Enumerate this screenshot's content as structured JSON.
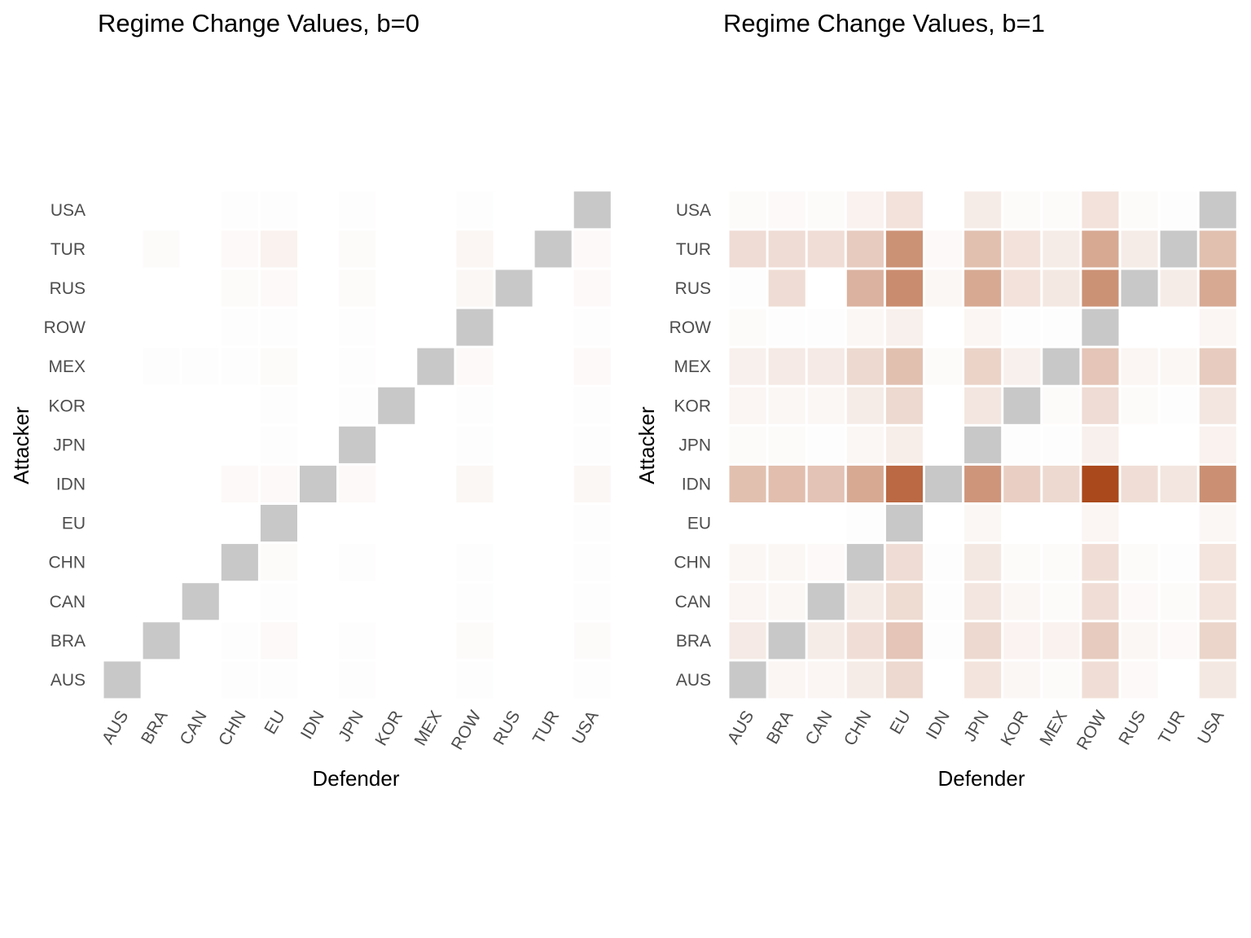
{
  "chart_data": [
    {
      "type": "heatmap",
      "title": "Regime Change Values, b=0",
      "xlabel": "Defender",
      "ylabel": "Attacker",
      "x_categories": [
        "AUS",
        "BRA",
        "CAN",
        "CHN",
        "EU",
        "IDN",
        "JPN",
        "KOR",
        "MEX",
        "ROW",
        "RUS",
        "TUR",
        "USA"
      ],
      "y_categories": [
        "AUS",
        "BRA",
        "CAN",
        "CHN",
        "EU",
        "IDN",
        "JPN",
        "KOR",
        "MEX",
        "ROW",
        "RUS",
        "TUR",
        "USA"
      ],
      "diagonal_color": "#c8c8c8",
      "low_color": "#ffffff",
      "high_color": "#a63f0f",
      "grid": false,
      "legend": "none",
      "rows": [
        [
          null,
          0.0,
          0.0,
          0.01,
          0.01,
          0.0,
          0.01,
          0.0,
          0.0,
          0.01,
          0.0,
          0.0,
          0.01
        ],
        [
          0.0,
          null,
          0.0,
          0.01,
          0.03,
          0.0,
          0.01,
          0.0,
          0.0,
          0.02,
          0.0,
          0.0,
          0.02
        ],
        [
          0.0,
          0.0,
          null,
          0.0,
          0.01,
          0.0,
          0.0,
          0.0,
          0.0,
          0.01,
          0.0,
          0.0,
          0.01
        ],
        [
          0.0,
          0.0,
          0.0,
          null,
          0.02,
          0.0,
          0.01,
          0.0,
          0.0,
          0.01,
          0.0,
          0.0,
          0.01
        ],
        [
          0.0,
          0.0,
          0.0,
          0.0,
          null,
          0.0,
          0.0,
          0.0,
          0.0,
          0.0,
          0.0,
          0.0,
          0.01
        ],
        [
          0.0,
          0.0,
          0.0,
          0.03,
          0.03,
          null,
          0.03,
          0.0,
          0.0,
          0.04,
          0.0,
          0.0,
          0.04
        ],
        [
          0.0,
          0.0,
          0.0,
          0.0,
          0.01,
          0.0,
          null,
          0.0,
          0.0,
          0.01,
          0.0,
          0.0,
          0.01
        ],
        [
          0.0,
          0.0,
          0.0,
          0.0,
          0.01,
          0.0,
          0.01,
          null,
          0.0,
          0.01,
          0.0,
          0.0,
          0.01
        ],
        [
          0.0,
          0.01,
          0.01,
          0.01,
          0.02,
          0.0,
          0.01,
          0.0,
          null,
          0.03,
          0.0,
          0.0,
          0.03
        ],
        [
          0.0,
          0.0,
          0.0,
          0.01,
          0.01,
          0.0,
          0.01,
          0.0,
          0.0,
          null,
          0.0,
          0.0,
          0.01
        ],
        [
          0.0,
          0.0,
          0.0,
          0.02,
          0.03,
          0.0,
          0.02,
          0.0,
          0.0,
          0.04,
          null,
          0.0,
          0.03
        ],
        [
          0.0,
          0.02,
          0.0,
          0.03,
          0.07,
          0.0,
          0.02,
          0.0,
          0.0,
          0.05,
          0.0,
          null,
          0.03
        ],
        [
          0.0,
          0.0,
          0.0,
          0.01,
          0.01,
          0.0,
          0.01,
          0.0,
          0.0,
          0.01,
          0.0,
          0.0,
          null
        ]
      ]
    },
    {
      "type": "heatmap",
      "title": "Regime Change Values, b=1",
      "xlabel": "Defender",
      "ylabel": "Attacker",
      "x_categories": [
        "AUS",
        "BRA",
        "CAN",
        "CHN",
        "EU",
        "IDN",
        "JPN",
        "KOR",
        "MEX",
        "ROW",
        "RUS",
        "TUR",
        "USA"
      ],
      "y_categories": [
        "AUS",
        "BRA",
        "CAN",
        "CHN",
        "EU",
        "IDN",
        "JPN",
        "KOR",
        "MEX",
        "ROW",
        "RUS",
        "TUR",
        "USA"
      ],
      "diagonal_color": "#c8c8c8",
      "low_color": "#ffffff",
      "high_color": "#a63f0f",
      "grid": false,
      "legend": "none",
      "rows": [
        [
          null,
          0.05,
          0.05,
          0.1,
          0.2,
          0.0,
          0.14,
          0.04,
          0.02,
          0.17,
          0.03,
          0.0,
          0.12
        ],
        [
          0.11,
          null,
          0.1,
          0.17,
          0.3,
          0.01,
          0.2,
          0.06,
          0.07,
          0.27,
          0.04,
          0.03,
          0.22
        ],
        [
          0.05,
          0.04,
          null,
          0.1,
          0.19,
          0.01,
          0.13,
          0.04,
          0.02,
          0.17,
          0.03,
          0.02,
          0.14
        ],
        [
          0.04,
          0.04,
          0.03,
          null,
          0.18,
          0.01,
          0.12,
          0.02,
          0.02,
          0.17,
          0.02,
          0.01,
          0.14
        ],
        [
          0.0,
          0.0,
          0.0,
          0.01,
          null,
          0.0,
          0.04,
          0.0,
          0.0,
          0.05,
          0.0,
          0.0,
          0.04
        ],
        [
          0.33,
          0.34,
          0.31,
          0.45,
          0.78,
          null,
          0.55,
          0.25,
          0.2,
          0.95,
          0.17,
          0.13,
          0.58
        ],
        [
          0.02,
          0.02,
          0.01,
          0.04,
          0.09,
          0.0,
          null,
          0.01,
          0.01,
          0.08,
          0.0,
          0.0,
          0.07
        ],
        [
          0.05,
          0.04,
          0.04,
          0.1,
          0.2,
          0.0,
          0.13,
          null,
          0.02,
          0.18,
          0.02,
          0.01,
          0.13
        ],
        [
          0.08,
          0.11,
          0.11,
          0.2,
          0.33,
          0.02,
          0.23,
          0.08,
          null,
          0.3,
          0.05,
          0.04,
          0.27
        ],
        [
          0.02,
          0.01,
          0.01,
          0.04,
          0.08,
          0.0,
          0.05,
          0.01,
          0.01,
          null,
          0.0,
          0.0,
          0.05
        ],
        [
          0.01,
          0.18,
          0.0,
          0.4,
          0.6,
          0.04,
          0.45,
          0.15,
          0.12,
          0.57,
          null,
          0.1,
          0.45
        ],
        [
          0.18,
          0.18,
          0.17,
          0.27,
          0.57,
          0.03,
          0.33,
          0.15,
          0.1,
          0.45,
          0.1,
          null,
          0.33
        ],
        [
          0.02,
          0.03,
          0.02,
          0.07,
          0.15,
          0.0,
          0.1,
          0.02,
          0.02,
          0.15,
          0.02,
          0.01,
          null
        ]
      ]
    }
  ]
}
